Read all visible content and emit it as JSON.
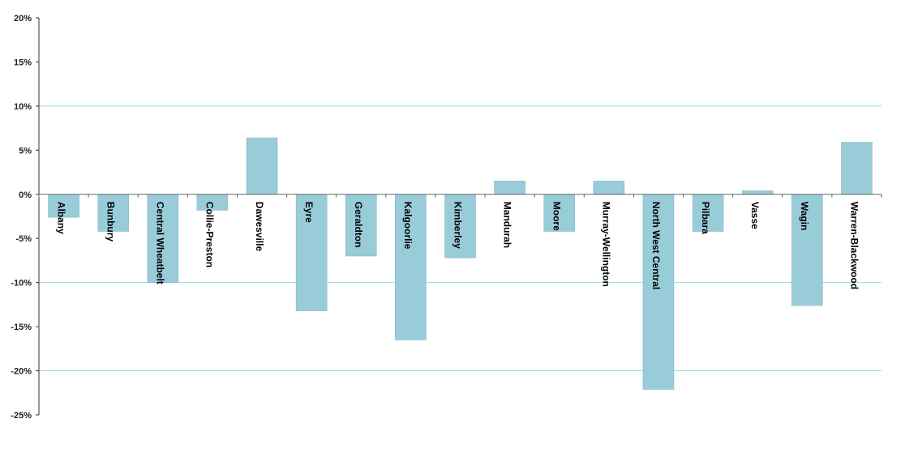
{
  "chart_data": {
    "type": "bar",
    "title": "",
    "xlabel": "",
    "ylabel": "",
    "ylim": [
      -25,
      20
    ],
    "yticks": [
      20,
      15,
      10,
      5,
      0,
      -5,
      -10,
      -15,
      -20,
      -25
    ],
    "ytick_labels": [
      "20%",
      "15%",
      "10%",
      "5%",
      "0%",
      "-5%",
      "-10%",
      "-15%",
      "-20%",
      "-25%"
    ],
    "gridlines_at": [
      10,
      -10,
      -20
    ],
    "categories": [
      "Albany",
      "Bunbury",
      "Central Wheatbelt",
      "Collie-Preston",
      "Dawesville",
      "Eyre",
      "Geraldton",
      "Kalgoorlie",
      "Kimberley",
      "Mandurah",
      "Moore",
      "Murray-Wellington",
      "North West Central",
      "Pilbara",
      "Vasse",
      "Wagin",
      "Warren-Blackwood"
    ],
    "values": [
      -2.6,
      -4.2,
      -10.0,
      -1.8,
      6.4,
      -13.2,
      -7.0,
      -16.5,
      -7.2,
      1.5,
      -4.2,
      1.5,
      -22.1,
      -4.2,
      0.4,
      -12.6,
      5.9
    ],
    "colors": {
      "bar": "#99CCD9",
      "bar_edge": "#8ab8c4",
      "grid": "#8EDDEB",
      "axis": "#333333"
    }
  }
}
